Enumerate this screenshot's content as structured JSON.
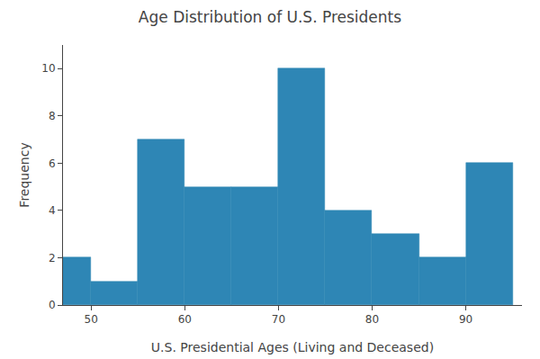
{
  "chart_data": {
    "type": "histogram",
    "title": "Age Distribution of U.S. Presidents",
    "xlabel": "U.S. Presidential Ages (Living and Deceased)",
    "ylabel": "Frequency",
    "bins": [
      47,
      50,
      55,
      60,
      65,
      70,
      75,
      80,
      85,
      90,
      95
    ],
    "values": [
      2,
      1,
      7,
      5,
      5,
      10,
      4,
      3,
      2,
      6
    ],
    "color": "#2e86b5",
    "xlim": [
      47,
      96
    ],
    "ylim": [
      0,
      11
    ],
    "xticks": [
      50,
      60,
      70,
      80,
      90
    ],
    "yticks": [
      0,
      2,
      4,
      6,
      8,
      10
    ],
    "grid": false
  }
}
